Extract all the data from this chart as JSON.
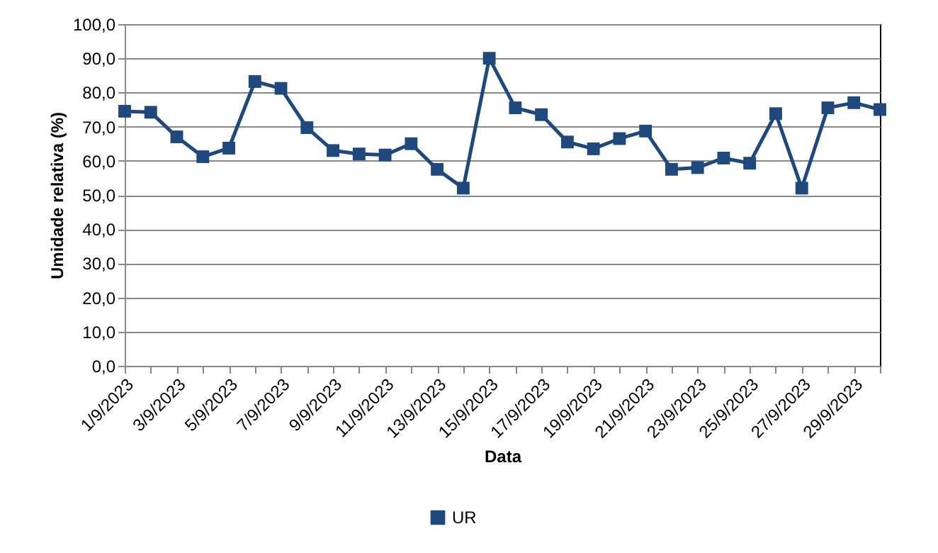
{
  "chart_data": {
    "type": "line",
    "xlabel": "Data",
    "ylabel": "Umidade relativa (%)",
    "categories": [
      "1/9/2023",
      null,
      "3/9/2023",
      null,
      "5/9/2023",
      null,
      "7/9/2023",
      null,
      "9/9/2023",
      null,
      "11/9/2023",
      null,
      "13/9/2023",
      null,
      "15/9/2023",
      null,
      "17/9/2023",
      null,
      "19/9/2023",
      null,
      "21/9/2023",
      null,
      "23/9/2023",
      null,
      "25/9/2023",
      null,
      "27/9/2023",
      null,
      "29/9/2023",
      null
    ],
    "series": [
      {
        "name": "UR",
        "color": "#1f497d",
        "values": [
          74.5,
          74.2,
          67,
          61.2,
          63.7,
          83.2,
          81.2,
          69.7,
          63,
          62,
          61.7,
          65,
          57.5,
          52,
          90,
          75.5,
          73.5,
          65.5,
          63.5,
          66.5,
          68.7,
          57.5,
          58,
          60.8,
          59.3,
          73.8,
          52,
          75.5,
          77,
          75
        ]
      }
    ],
    "ylim": [
      0,
      100
    ],
    "yticks": [
      {
        "value": 0,
        "label": "0,0"
      },
      {
        "value": 10,
        "label": "10,0"
      },
      {
        "value": 20,
        "label": "20,0"
      },
      {
        "value": 30,
        "label": "30,0"
      },
      {
        "value": 40,
        "label": "40,0"
      },
      {
        "value": 50,
        "label": "50,0"
      },
      {
        "value": 60,
        "label": "60,0"
      },
      {
        "value": 70,
        "label": "70,0"
      },
      {
        "value": 80,
        "label": "80,0"
      },
      {
        "value": 90,
        "label": "90,0"
      },
      {
        "value": 100,
        "label": "100,0"
      }
    ],
    "grid": "y",
    "legend": "bottom",
    "marker": "square",
    "line_style": "solid"
  }
}
